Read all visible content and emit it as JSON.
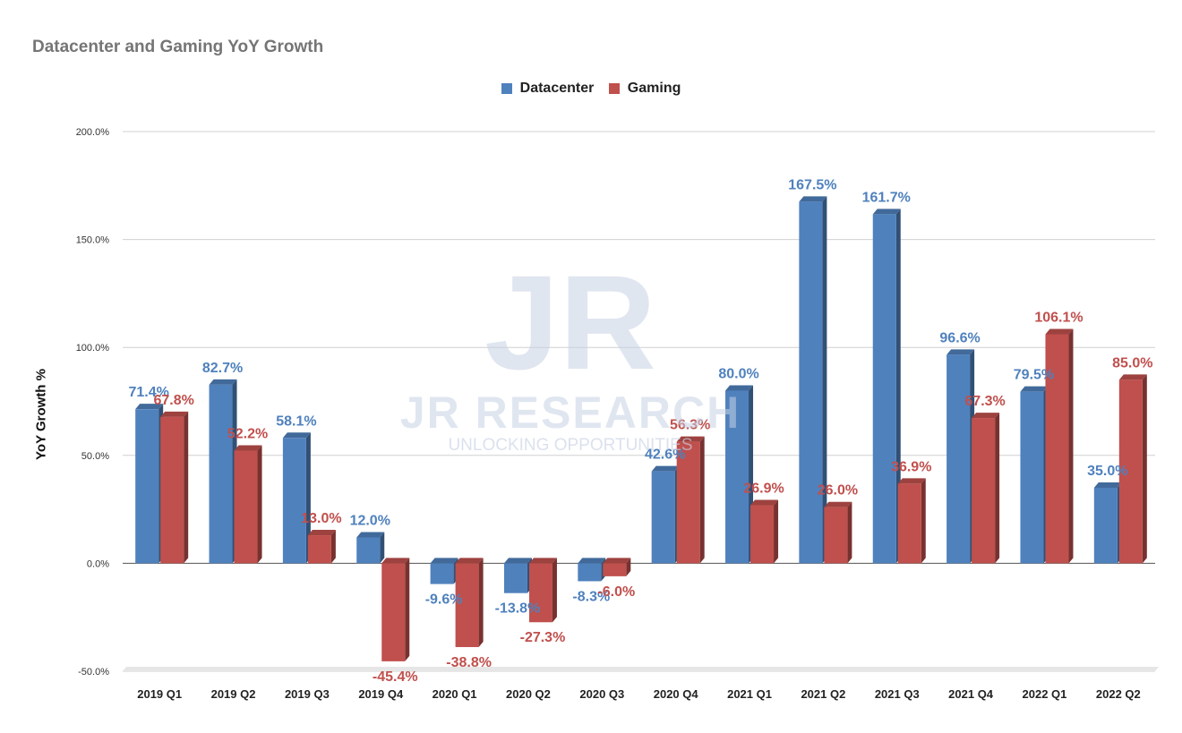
{
  "chart_data": {
    "type": "bar",
    "title": "Datacenter and Gaming YoY Growth",
    "ylabel": "YoY Growth %",
    "xlabel": "",
    "ylim": [
      -50,
      200
    ],
    "yticks": [
      "200.0%",
      "150.0%",
      "100.0%",
      "50.0%",
      "0.0%",
      "-50.0%"
    ],
    "yticks_values": [
      200,
      150,
      100,
      50,
      0,
      -50
    ],
    "grid": true,
    "legend_position": "top-center",
    "categories": [
      "2019 Q1",
      "2019 Q2",
      "2019 Q3",
      "2019 Q4",
      "2020 Q1",
      "2020 Q2",
      "2020 Q3",
      "2020 Q4",
      "2021 Q1",
      "2021 Q2",
      "2021 Q3",
      "2021 Q4",
      "2022 Q1",
      "2022 Q2"
    ],
    "series": [
      {
        "name": "Datacenter",
        "color": "#4f81bd",
        "values": [
          71.4,
          82.7,
          58.1,
          12.0,
          -9.6,
          -13.8,
          -8.3,
          42.6,
          80.0,
          167.5,
          161.7,
          96.6,
          79.5,
          35.0
        ],
        "labels": [
          "71.4%",
          "82.7%",
          "58.1%",
          "12.0%",
          "-9.6%",
          "-13.8%",
          "-8.3%",
          "42.6%",
          "80.0%",
          "167.5%",
          "161.7%",
          "96.6%",
          "79.5%",
          "35.0%"
        ]
      },
      {
        "name": "Gaming",
        "color": "#c0504d",
        "values": [
          67.8,
          52.2,
          13.0,
          -45.4,
          -38.8,
          -27.3,
          -6.0,
          56.3,
          26.9,
          26.0,
          36.9,
          67.3,
          106.1,
          85.0
        ],
        "labels": [
          "67.8%",
          "52.2%",
          "13.0%",
          "-45.4%",
          "-38.8%",
          "-27.3%",
          "-6.0%",
          "56.3%",
          "26.9%",
          "26.0%",
          "36.9%",
          "67.3%",
          "106.1%",
          "85.0%"
        ]
      }
    ]
  },
  "watermark": {
    "logo": "JR",
    "name": "JR RESEARCH",
    "tagline": "UNLOCKING OPPORTUNITIES"
  }
}
